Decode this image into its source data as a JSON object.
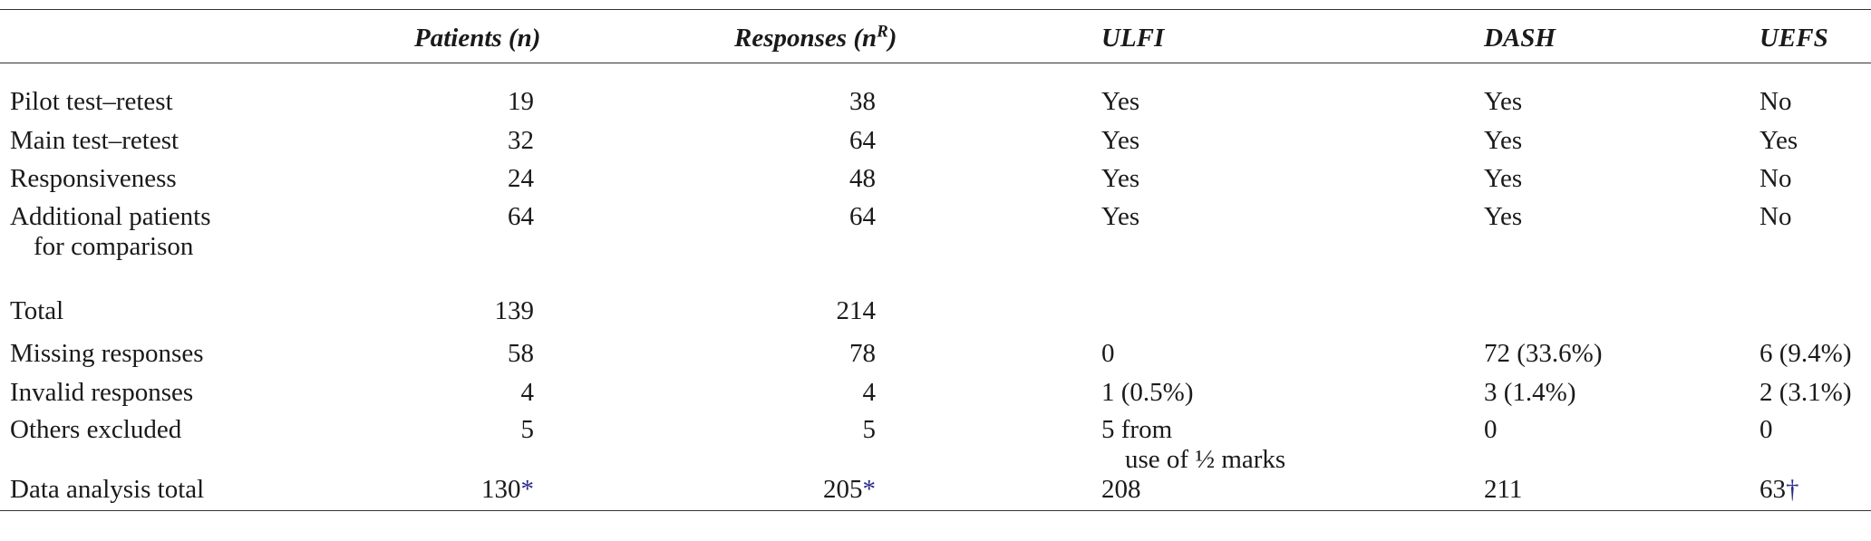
{
  "table": {
    "header": [
      {
        "text": "Patients (n)"
      },
      {
        "before": "Responses (n",
        "sup": "R",
        "after": ")"
      },
      {
        "text": "ULFI"
      },
      {
        "text": "DASH"
      },
      {
        "text": "UEFS"
      }
    ],
    "rows": [
      [
        "Pilot test–retest",
        "19",
        "38",
        "Yes",
        "Yes",
        "No"
      ],
      [
        "Main test–retest",
        "32",
        "64",
        "Yes",
        "Yes",
        "Yes"
      ],
      [
        "Responsiveness",
        "24",
        "48",
        "Yes",
        "Yes",
        "No"
      ],
      [
        [
          "Additional patients",
          "for comparison"
        ],
        "64",
        "64",
        "Yes",
        "Yes",
        "No"
      ],
      [
        "Total",
        "139",
        "214"
      ],
      [
        "Missing responses",
        "58",
        "78",
        "0",
        "72 (33.6%)",
        "6 (9.4%)"
      ],
      [
        "Invalid responses",
        "4",
        "4",
        "1 (0.5%)",
        "3 (1.4%)",
        "2 (3.1%)"
      ],
      [
        "Others excluded",
        "5",
        "5",
        [
          "5 from",
          "use of ½ marks"
        ],
        "0",
        "0"
      ],
      [
        "Data analysis total",
        {
          "text": "130",
          "note": "*"
        },
        {
          "text": "205",
          "note": "*"
        },
        "208",
        "211",
        {
          "text": "63",
          "note": "†"
        }
      ]
    ]
  }
}
